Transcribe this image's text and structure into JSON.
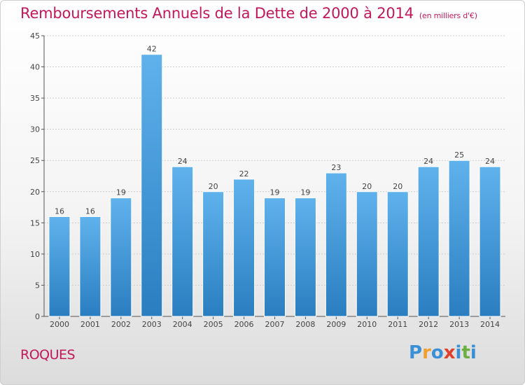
{
  "chart_data": {
    "type": "bar",
    "title": "Remboursements Annuels de la Dette de 2000 à 2014",
    "subtitle": "(en milliers d'€)",
    "categories": [
      "2000",
      "2001",
      "2002",
      "2003",
      "2004",
      "2005",
      "2006",
      "2007",
      "2008",
      "2009",
      "2010",
      "2011",
      "2012",
      "2013",
      "2014"
    ],
    "values": [
      16,
      16,
      19,
      42,
      24,
      20,
      22,
      19,
      19,
      23,
      20,
      20,
      24,
      25,
      24
    ],
    "ylim": [
      0,
      45
    ],
    "yticks": [
      0,
      5,
      10,
      15,
      20,
      25,
      30,
      35,
      40,
      45
    ],
    "xlabel": "",
    "ylabel": "",
    "grid": true
  },
  "colors": {
    "bar_top": "#5fb2ec",
    "bar_bottom": "#2a7ec0",
    "title": "#c2185b",
    "grid": "#cccccc"
  },
  "place_name": "ROQUES",
  "logo": {
    "letters": [
      "P",
      "r",
      "o",
      "x",
      "i",
      "t",
      "i"
    ],
    "colors": [
      "#3a8fd6",
      "#f0a030",
      "#3a8fd6",
      "#e0402a",
      "#3a8fd6",
      "#6ab040",
      "#3a8fd6"
    ]
  }
}
